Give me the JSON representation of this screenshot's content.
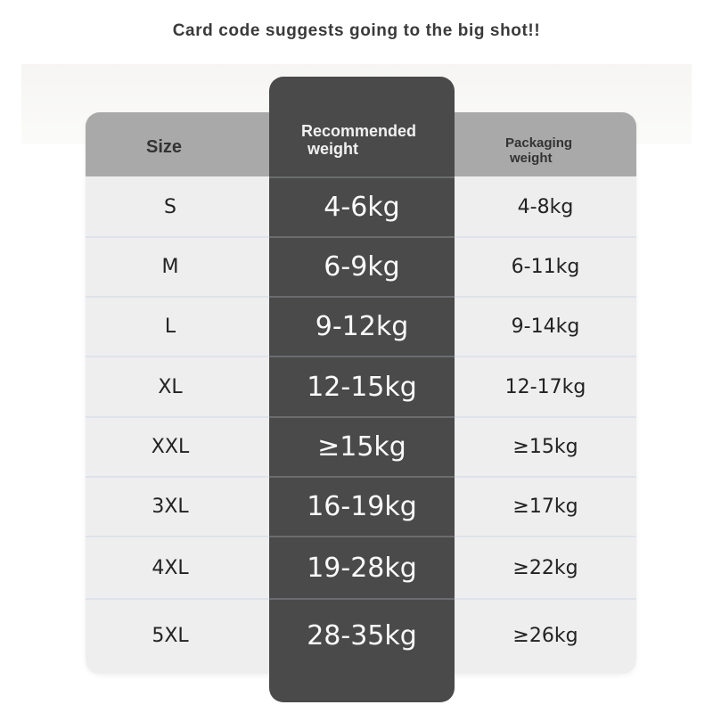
{
  "title": "Card code suggests going to the big shot!!",
  "headers": {
    "size": "Size",
    "recommended_line1": "Recommended",
    "recommended_line2": "weight",
    "packaging_line1": "Packaging",
    "packaging_line2": "weight"
  },
  "rows": [
    {
      "size": "S",
      "recommended": "4-6kg",
      "packaging": "4-8kg"
    },
    {
      "size": "M",
      "recommended": "6-9kg",
      "packaging": "6-11kg"
    },
    {
      "size": "L",
      "recommended": "9-12kg",
      "packaging": "9-14kg"
    },
    {
      "size": "XL",
      "recommended": "12-15kg",
      "packaging": "12-17kg"
    },
    {
      "size": "XXL",
      "recommended": "≥15kg",
      "packaging": "≥15kg"
    },
    {
      "size": "3XL",
      "recommended": "16-19kg",
      "packaging": "≥17kg"
    },
    {
      "size": "4XL",
      "recommended": "19-28kg",
      "packaging": "≥22kg"
    },
    {
      "size": "5XL",
      "recommended": "28-35kg",
      "packaging": "≥26kg"
    }
  ],
  "colors": {
    "header": "#a9a9a9",
    "highlight_column": "#4a4a4a",
    "row": "#efeeef"
  }
}
